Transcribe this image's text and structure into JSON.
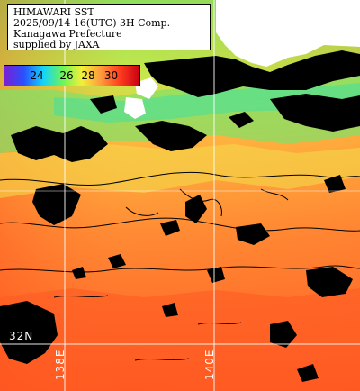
{
  "header": {
    "line1": "HIMAWARI SST",
    "line2": "2025/09/14 16(UTC) 3H Comp.",
    "line3": "Kanagawa Prefecture",
    "line4": "supplied by JAXA"
  },
  "colorbar": {
    "ticks": [
      "24",
      "26",
      "28",
      "30"
    ],
    "colors": [
      "#7a1fd1",
      "#2a50ff",
      "#14d2ff",
      "#69f55a",
      "#f1f03a",
      "#ff9a3c",
      "#ff3b1e",
      "#c80014"
    ]
  },
  "grid": {
    "lat_label": "32N",
    "lon_labels": [
      "138E",
      "140E"
    ]
  },
  "colors": {
    "land": "#ffffff",
    "cloud": "#000000",
    "sea_warm": "#ff6a2a",
    "sea_mid": "#ffa03c",
    "sea_cool": "#8ae05a",
    "grid_line": "#ffffff"
  }
}
